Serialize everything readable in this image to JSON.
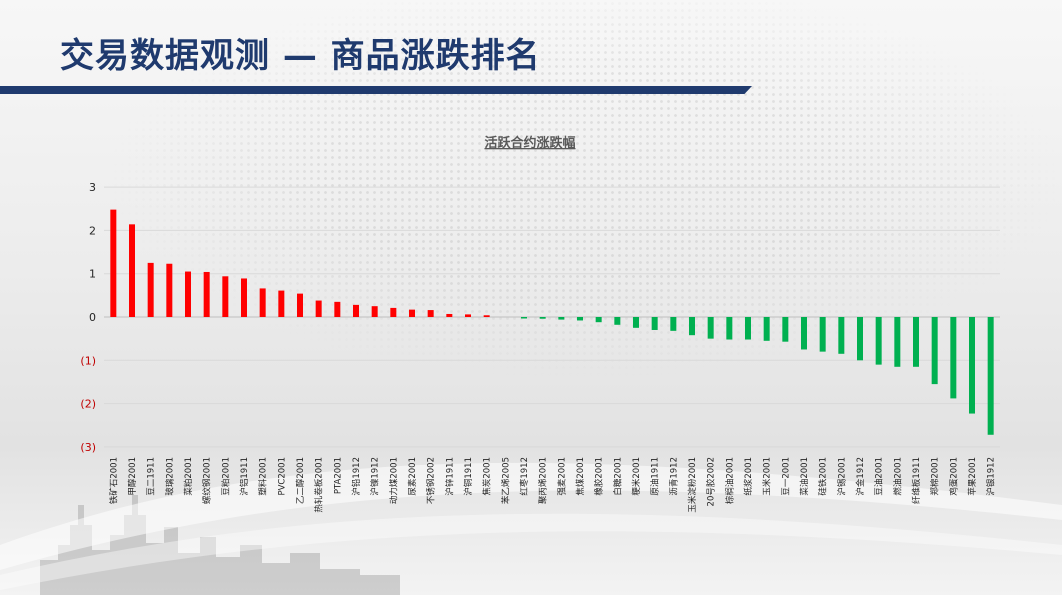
{
  "page": {
    "title": "交易数据观测 — 商品涨跌排名"
  },
  "chart_data": {
    "type": "bar",
    "title": "活跃合约涨跌幅",
    "ylim": [
      -3,
      3
    ],
    "yticks": [
      3,
      2,
      1,
      0,
      -1,
      -2,
      -3
    ],
    "ytick_labels": [
      "3",
      "2",
      "1",
      "0",
      "(1)",
      "(2)",
      "(3)"
    ],
    "grid": true,
    "positive_color": "#ff0000",
    "negative_color": "#00b050",
    "negative_label_color": "#c00000",
    "categories": [
      "铁矿石2001",
      "甲醇2001",
      "豆二1911",
      "玻璃2001",
      "菜粕2001",
      "螺纹钢2001",
      "豆粕2001",
      "沪铝1911",
      "塑料2001",
      "PVC2001",
      "乙二醇2001",
      "热轧卷板2001",
      "PTA2001",
      "沪铅1912",
      "沪镍1912",
      "动力煤2001",
      "尿素2001",
      "不锈钢2002",
      "沪锌1911",
      "沪铜1911",
      "焦炭2001",
      "苯乙烯2005",
      "红枣1912",
      "聚丙烯2001",
      "强麦2001",
      "焦煤2001",
      "橡胶2001",
      "白糖2001",
      "粳米2001",
      "原油1911",
      "沥青1912",
      "玉米淀粉2001",
      "20号胶2002",
      "棕榈油2001",
      "纸浆2001",
      "玉米2001",
      "豆一2001",
      "菜油2001",
      "硅铁2001",
      "沪锡2001",
      "沪金1912",
      "豆油2001",
      "燃油2001",
      "纤维板1911",
      "郑棉2001",
      "鸡蛋2001",
      "苹果2001",
      "沪银1912"
    ],
    "values": [
      2.48,
      2.14,
      1.25,
      1.23,
      1.05,
      1.04,
      0.94,
      0.89,
      0.66,
      0.61,
      0.54,
      0.38,
      0.35,
      0.28,
      0.25,
      0.21,
      0.17,
      0.16,
      0.07,
      0.06,
      0.04,
      0.0,
      -0.03,
      -0.04,
      -0.06,
      -0.08,
      -0.12,
      -0.18,
      -0.25,
      -0.3,
      -0.32,
      -0.42,
      -0.5,
      -0.52,
      -0.52,
      -0.55,
      -0.57,
      -0.75,
      -0.8,
      -0.85,
      -1.0,
      -1.1,
      -1.15,
      -1.15,
      -1.55,
      -1.88,
      -2.23,
      -2.72
    ]
  }
}
